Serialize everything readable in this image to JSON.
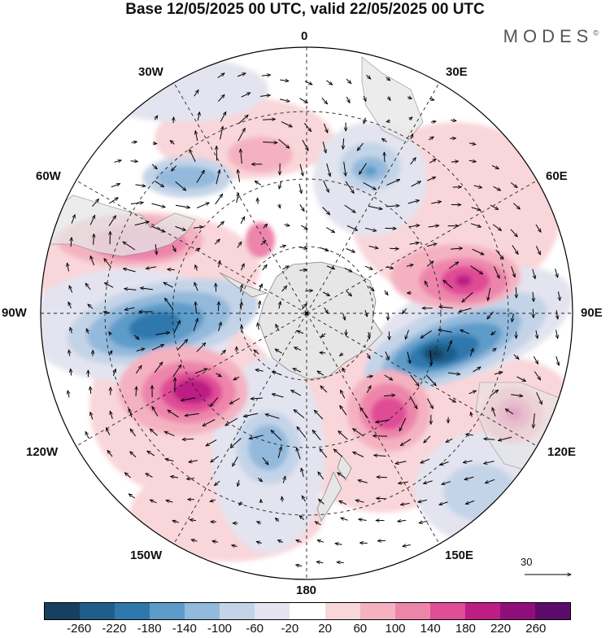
{
  "header": {
    "title": "Base 12/05/2025 00 UTC, valid 22/05/2025 00 UTC",
    "brand": "MODES"
  },
  "longitude_labels": {
    "top": "0",
    "top_right": "30E",
    "top_left": "30W",
    "upper_left": "60W",
    "upper_right": "60E",
    "left": "90W",
    "right": "90E",
    "lower_left": "120W",
    "lower_right": "120E",
    "bottom_left": "150W",
    "bottom_right": "150E",
    "bottom": "180"
  },
  "reference_vector": {
    "label": "30"
  },
  "colorbar": {
    "colors": [
      "#17405e",
      "#1f5d8a",
      "#2f78ad",
      "#5d9bc9",
      "#93b9dc",
      "#c4d4e8",
      "#e3e4ef",
      "#ffffff",
      "#f9d6d9",
      "#f4b2c1",
      "#ed85ab",
      "#e04c96",
      "#bc1e84",
      "#8f0f7a",
      "#5d0b6b"
    ],
    "tick_labels": [
      "-260",
      "-220",
      "-180",
      "-140",
      "-100",
      "-60",
      "-20",
      "20",
      "60",
      "100",
      "140",
      "180",
      "220",
      "260"
    ]
  }
}
